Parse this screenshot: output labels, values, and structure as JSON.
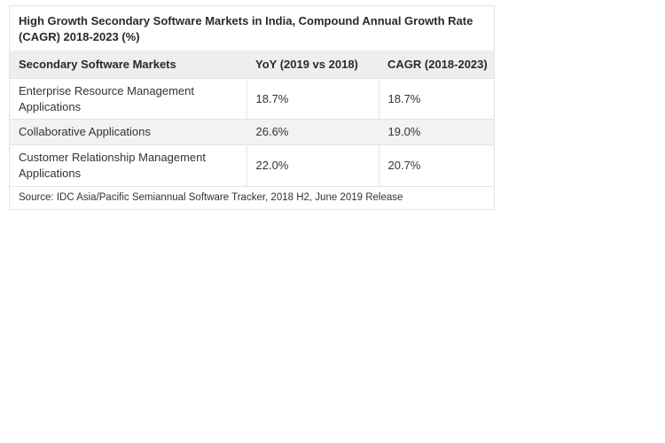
{
  "chart_data": {
    "type": "table",
    "title": "High Growth Secondary Software Markets in India, Compound Annual Growth Rate (CAGR) 2018-2023 (%)",
    "columns": [
      "Secondary Software Markets",
      "YoY (2019 vs 2018)",
      "CAGR (2018-2023)"
    ],
    "rows": [
      [
        "Enterprise Resource Management Applications",
        "18.7%",
        "18.7%"
      ],
      [
        "Collaborative Applications",
        "26.6%",
        "19.0%"
      ],
      [
        "Customer Relationship Management Applications",
        "22.0%",
        "20.7%"
      ]
    ],
    "source": "Source: IDC Asia/Pacific Semiannual Software Tracker, 2018 H2, June 2019 Release"
  }
}
